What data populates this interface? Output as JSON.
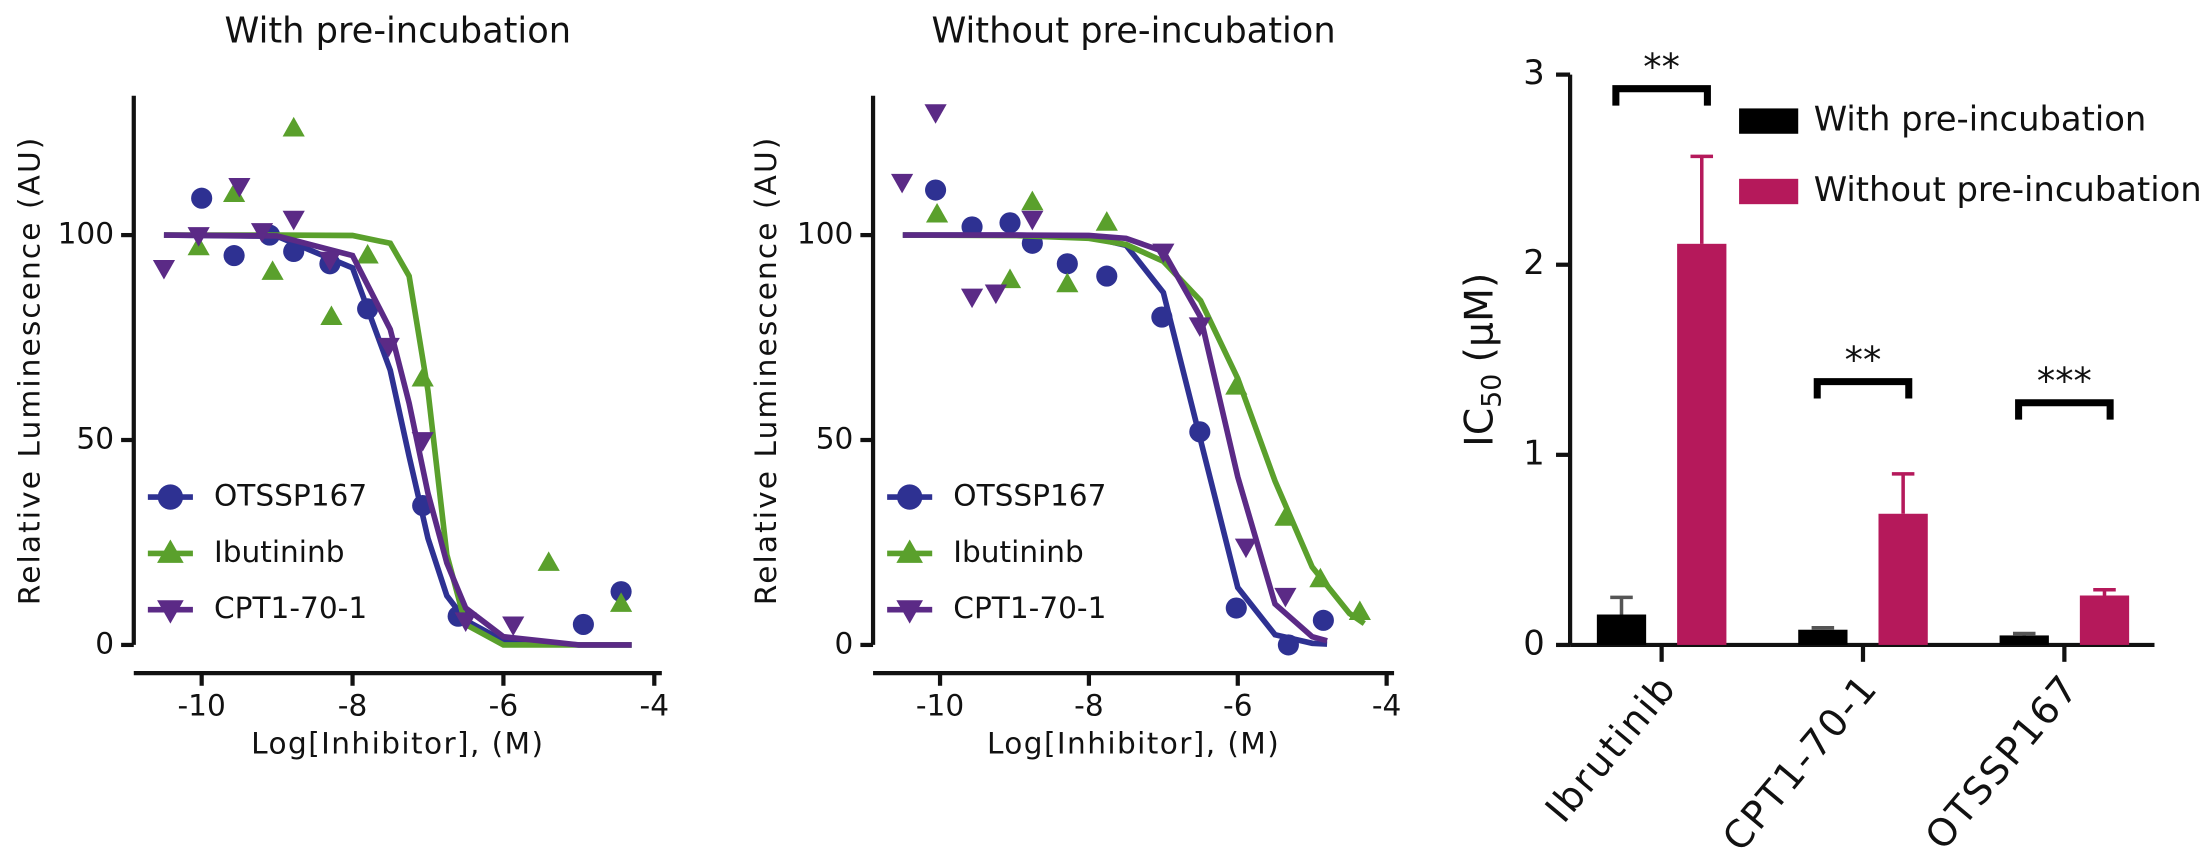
{
  "chart_data": [
    {
      "type": "scatter",
      "title": "With pre-incubation",
      "xlabel": "Log[Inhibitor], (M)",
      "ylabel": "Relative Luminescence (AU)",
      "xlim": [
        -10.9,
        -3.9
      ],
      "ylim": [
        0,
        134
      ],
      "xticks": [
        -10,
        -8,
        -6,
        -4
      ],
      "yticks": [
        0,
        50,
        100
      ],
      "legend": "lower left",
      "series": [
        {
          "name": "OTSSP167",
          "color": "#2e3192",
          "marker": "circle",
          "x": [
            -10,
            -9.57,
            -9.1,
            -8.78,
            -8.3,
            -7.8,
            -7.07,
            -6.6,
            -4.94,
            -4.44
          ],
          "values": [
            109,
            95,
            100,
            96,
            93,
            82,
            34,
            7,
            5,
            13
          ],
          "fit_x": [
            -10.5,
            -9,
            -8,
            -7.5,
            -7.25,
            -7,
            -6.75,
            -6.5,
            -6,
            -5,
            -4.3
          ],
          "fit_values": [
            100,
            99.7,
            92,
            67,
            46,
            26,
            12,
            6,
            1,
            0,
            0
          ]
        },
        {
          "name": "Ibutininb",
          "color": "#5aa02c",
          "marker": "triangle-up",
          "x": [
            -10.04,
            -9.57,
            -9.06,
            -8.78,
            -8.28,
            -7.8,
            -7.07,
            -5.4,
            -4.44
          ],
          "values": [
            97,
            110,
            91,
            126,
            80,
            95,
            65,
            20,
            10
          ],
          "fit_x": [
            -10.5,
            -9,
            -8,
            -7.5,
            -7.25,
            -7,
            -6.75,
            -6.5,
            -6,
            -5,
            -4.3
          ],
          "fit_values": [
            100,
            100,
            99.9,
            98,
            90,
            62,
            22,
            5,
            0,
            0,
            0
          ]
        },
        {
          "name": "CPT1-70-1",
          "color": "#5b2a86",
          "marker": "triangle-down",
          "x": [
            -10.5,
            -10.04,
            -9.5,
            -9.2,
            -8.78,
            -8.3,
            -7.52,
            -7.07,
            -6.5,
            -5.87
          ],
          "values": [
            92,
            100,
            112,
            101,
            104,
            94,
            73,
            50,
            6,
            5
          ],
          "fit_x": [
            -10.5,
            -9,
            -8,
            -7.5,
            -7.25,
            -7,
            -6.75,
            -6.5,
            -6,
            -5,
            -4.3
          ],
          "fit_values": [
            100,
            99.8,
            95,
            77,
            59,
            37,
            20,
            9,
            2,
            0,
            0
          ]
        }
      ]
    },
    {
      "type": "scatter",
      "title": "Without pre-incubation",
      "xlabel": "Log[Inhibitor], (M)",
      "ylabel": "Relative Luminescence (AU)",
      "xlim": [
        -10.9,
        -3.9
      ],
      "ylim": [
        0,
        134
      ],
      "xticks": [
        -10,
        -8,
        -6,
        -4
      ],
      "yticks": [
        0,
        50,
        100
      ],
      "legend": "lower left",
      "series": [
        {
          "name": "OTSSP167",
          "color": "#2e3192",
          "marker": "circle",
          "x": [
            -10.06,
            -9.57,
            -9.06,
            -8.76,
            -8.29,
            -7.76,
            -7.02,
            -6.51,
            -6.02,
            -5.32,
            -4.85
          ],
          "values": [
            111,
            102,
            103,
            98,
            93,
            90,
            80,
            52,
            9,
            0,
            6
          ],
          "fit_x": [
            -10.5,
            -9,
            -8,
            -7.5,
            -7,
            -6.5,
            -6,
            -5.5,
            -5,
            -4.8
          ],
          "fit_values": [
            100,
            100,
            99.6,
            97.5,
            86,
            50,
            14,
            2.5,
            0.4,
            0.2
          ]
        },
        {
          "name": "Ibutininb",
          "color": "#5aa02c",
          "marker": "triangle-up",
          "x": [
            -10.04,
            -9.06,
            -8.76,
            -8.29,
            -7.76,
            -6.02,
            -5.36,
            -4.89,
            -4.36
          ],
          "values": [
            105,
            89,
            108,
            88,
            103,
            63,
            31,
            16,
            8
          ],
          "fit_x": [
            -10.5,
            -9,
            -8,
            -7.5,
            -7,
            -6.5,
            -6,
            -5.5,
            -5,
            -4.5,
            -4.3
          ],
          "fit_values": [
            100,
            99.9,
            99.2,
            97.7,
            93.6,
            84,
            65,
            40,
            19,
            7.7,
            5.2
          ]
        },
        {
          "name": "CPT1-70-1",
          "color": "#5b2a86",
          "marker": "triangle-down",
          "x": [
            -10.51,
            -10.06,
            -9.57,
            -9.25,
            -8.76,
            -7,
            -6.51,
            -5.89,
            -5.36
          ],
          "values": [
            113,
            130,
            85,
            86,
            104,
            96,
            78,
            24,
            12
          ],
          "fit_x": [
            -10.5,
            -9,
            -8,
            -7.5,
            -7,
            -6.5,
            -6,
            -5.5,
            -5,
            -4.8
          ],
          "fit_values": [
            100,
            100,
            99.9,
            99.2,
            96,
            80,
            41,
            10,
            2,
            1
          ]
        }
      ]
    },
    {
      "type": "bar",
      "ylabel": {
        "main": "IC",
        "subscript": "50",
        "unit": "(μM)"
      },
      "categories": [
        "Ibrutinib",
        "CPT1-70-1",
        "OTSSP167"
      ],
      "ylim": [
        0,
        3
      ],
      "yticks": [
        0,
        1,
        2,
        3
      ],
      "legend": "upper right",
      "series": [
        {
          "name": "With pre-incubation",
          "color": "#000000",
          "values": [
            0.16,
            0.08,
            0.05
          ],
          "errors": [
            0.09,
            0.01,
            0.01
          ]
        },
        {
          "name": "Without pre-incubation",
          "color": "#b5195b",
          "values": [
            2.11,
            0.69,
            0.26
          ],
          "errors": [
            0.46,
            0.21,
            0.03
          ]
        }
      ],
      "annotations": [
        "**",
        "**",
        "***"
      ]
    }
  ]
}
